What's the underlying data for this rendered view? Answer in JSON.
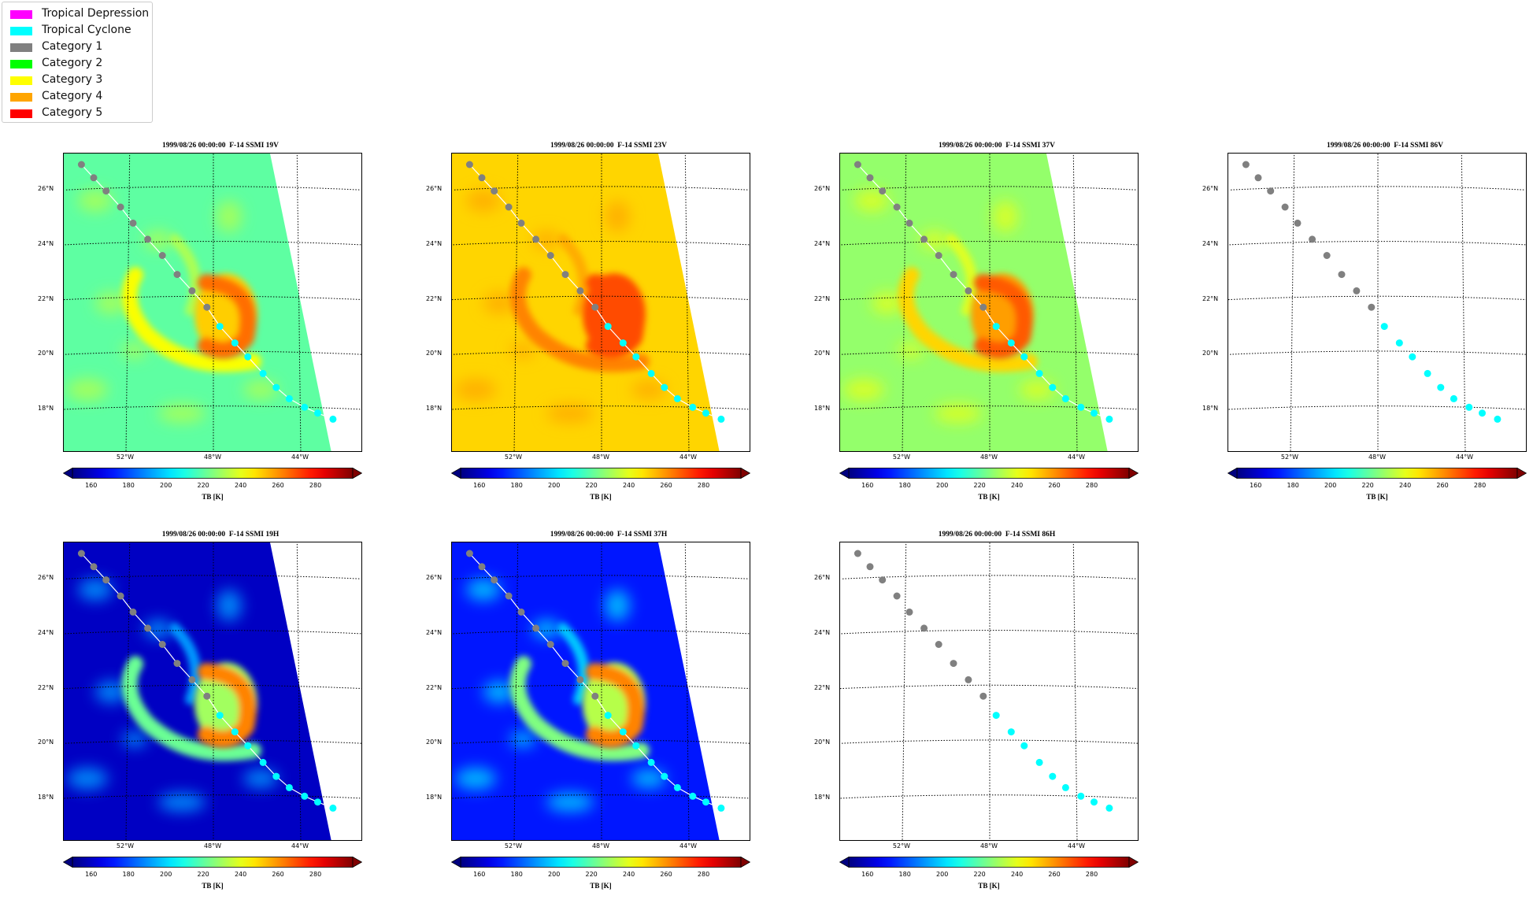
{
  "legend": [
    {
      "label": "Tropical Depression",
      "color": "#ff00ff"
    },
    {
      "label": "Tropical Cyclone",
      "color": "#00ffff"
    },
    {
      "label": "Category 1",
      "color": "#808080"
    },
    {
      "label": "Category 2",
      "color": "#00ff00"
    },
    {
      "label": "Category 3",
      "color": "#ffff00"
    },
    {
      "label": "Category 4",
      "color": "#ffa500"
    },
    {
      "label": "Category 5",
      "color": "#ff0000"
    }
  ],
  "common": {
    "y_ticks": [
      "26°N",
      "24°N",
      "22°N",
      "20°N",
      "18°N"
    ],
    "x_ticks": [
      "52°W",
      "48°W",
      "44°W"
    ],
    "colorbar_ticks": [
      "160",
      "180",
      "200",
      "220",
      "240",
      "260",
      "280"
    ],
    "colorbar_label": "TB [K]",
    "colorbar_range": [
      150,
      300
    ],
    "colormap": "jet"
  },
  "chart_data": [
    {
      "type": "heatmap",
      "title": "1999/08/26 00:00:00  F-14 SSMI 19V",
      "background_tb": 220,
      "storm_peak_tb": 265,
      "band_tb": 243,
      "has_data": true
    },
    {
      "type": "heatmap",
      "title": "1999/08/26 00:00:00  F-14 SSMI 23V",
      "background_tb": 250,
      "storm_peak_tb": 270,
      "band_tb": 262,
      "has_data": true
    },
    {
      "type": "heatmap",
      "title": "1999/08/26 00:00:00  F-14 SSMI 37V",
      "background_tb": 228,
      "storm_peak_tb": 268,
      "band_tb": 250,
      "has_data": true
    },
    {
      "type": "heatmap",
      "title": "1999/08/26 00:00:00  F-14 SSMI 86V",
      "has_data": false
    },
    {
      "type": "heatmap",
      "title": "1999/08/26 00:00:00  F-14 SSMI 19H",
      "background_tb": 160,
      "storm_peak_tb": 262,
      "band_tb": 222,
      "has_data": true
    },
    {
      "type": "heatmap",
      "title": "1999/08/26 00:00:00  F-14 SSMI 37H",
      "background_tb": 172,
      "storm_peak_tb": 262,
      "band_tb": 225,
      "has_data": true
    },
    {
      "type": "heatmap",
      "title": "1999/08/26 00:00:00  F-14 SSMI 86H",
      "has_data": false
    }
  ],
  "track": [
    {
      "lon": -54.3,
      "lat": 26.9,
      "category": "Category 1"
    },
    {
      "lon": -53.7,
      "lat": 26.4,
      "category": "Category 1"
    },
    {
      "lon": -53.1,
      "lat": 25.9,
      "category": "Category 1"
    },
    {
      "lon": -52.4,
      "lat": 25.3,
      "category": "Category 1"
    },
    {
      "lon": -51.8,
      "lat": 24.7,
      "category": "Category 1"
    },
    {
      "lon": -51.1,
      "lat": 24.1,
      "category": "Category 1"
    },
    {
      "lon": -50.4,
      "lat": 23.5,
      "category": "Category 1"
    },
    {
      "lon": -49.7,
      "lat": 22.8,
      "category": "Category 1"
    },
    {
      "lon": -49.0,
      "lat": 22.2,
      "category": "Category 1"
    },
    {
      "lon": -48.3,
      "lat": 21.6,
      "category": "Category 1"
    },
    {
      "lon": -47.7,
      "lat": 20.9,
      "category": "Tropical Cyclone"
    },
    {
      "lon": -47.0,
      "lat": 20.3,
      "category": "Tropical Cyclone"
    },
    {
      "lon": -46.4,
      "lat": 19.8,
      "category": "Tropical Cyclone"
    },
    {
      "lon": -45.7,
      "lat": 19.2,
      "category": "Tropical Cyclone"
    },
    {
      "lon": -45.1,
      "lat": 18.7,
      "category": "Tropical Cyclone"
    },
    {
      "lon": -44.5,
      "lat": 18.3,
      "category": "Tropical Cyclone"
    },
    {
      "lon": -43.8,
      "lat": 18.0,
      "category": "Tropical Cyclone"
    },
    {
      "lon": -43.2,
      "lat": 17.8,
      "category": "Tropical Cyclone"
    },
    {
      "lon": -42.5,
      "lat": 17.6,
      "category": "Tropical Cyclone"
    }
  ]
}
